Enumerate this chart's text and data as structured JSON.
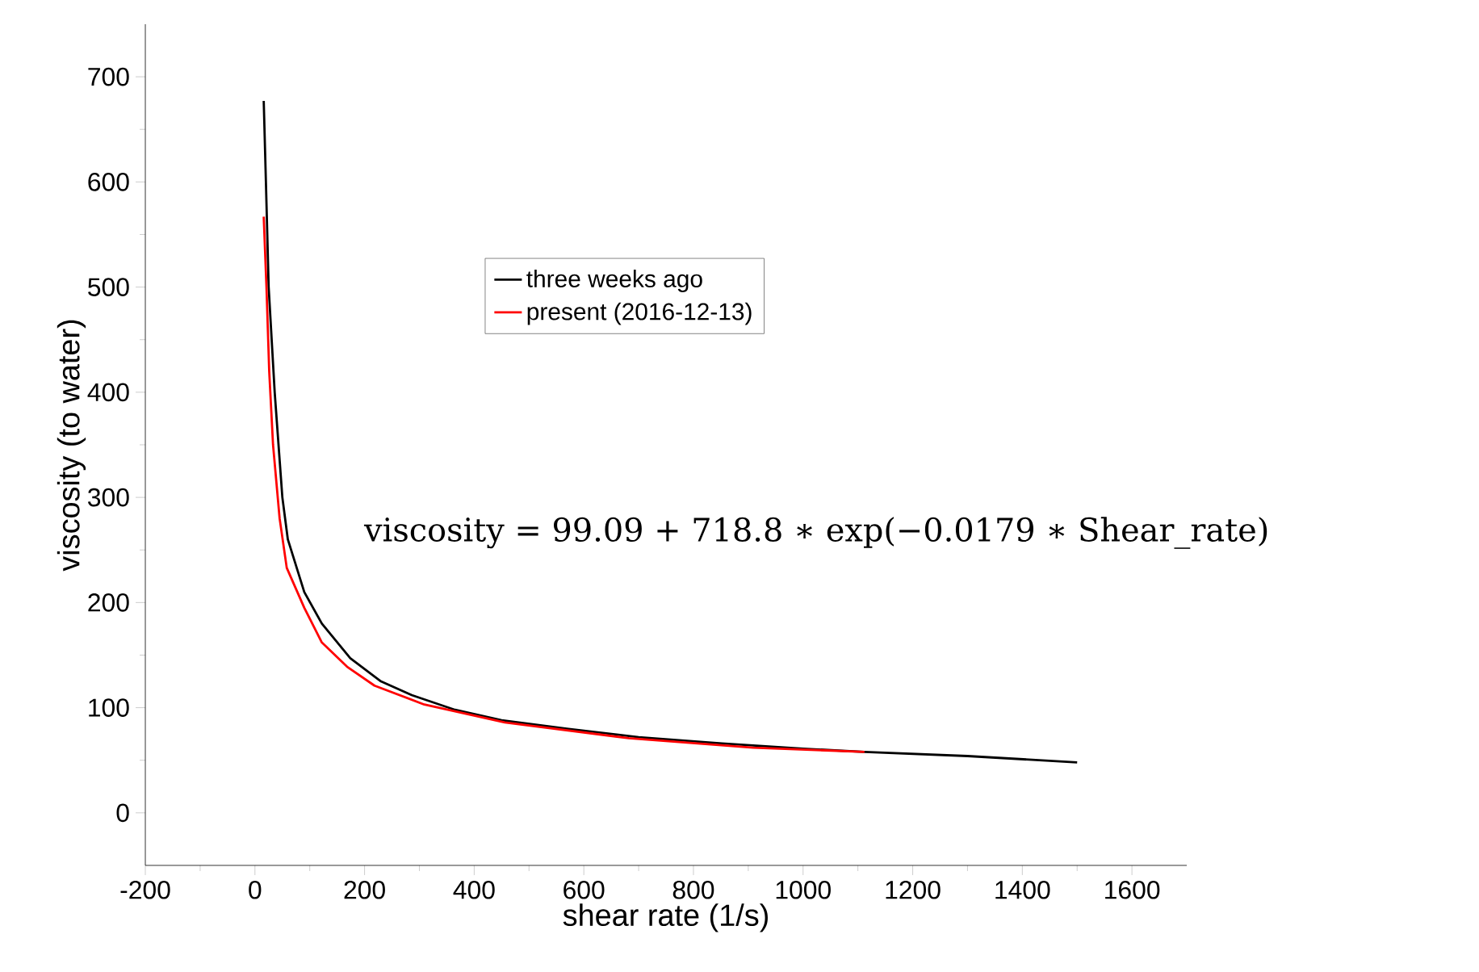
{
  "chart_data": {
    "type": "line",
    "xlabel": "shear rate (1/s)",
    "ylabel": "viscosity (to water)",
    "xlim": [
      -200,
      1700
    ],
    "ylim": [
      -50,
      750
    ],
    "xticks": [
      -200,
      0,
      200,
      400,
      600,
      800,
      1000,
      1200,
      1400,
      1600
    ],
    "yticks": [
      0,
      100,
      200,
      300,
      400,
      500,
      600,
      700
    ],
    "grid": false,
    "legend": "top",
    "marker": "none",
    "line_style": "solid",
    "annotations": [
      "viscosity = 99.09 + 718.8 ∗ exp(−0.0179 ∗ Shear_rate)"
    ],
    "series": [
      {
        "name": "three weeks ago",
        "color": "#000000",
        "x": [
          16,
          20,
          25,
          36,
          50,
          60,
          90,
          122,
          174,
          230,
          286,
          365,
          450,
          569,
          700,
          852,
          1000,
          1112,
          1300,
          1500
        ],
        "values": [
          677,
          600,
          500,
          400,
          300,
          260,
          210,
          180,
          147,
          125,
          112,
          98,
          88,
          80,
          72,
          66,
          61,
          58,
          54,
          48
        ]
      },
      {
        "name": "present (2016-12-13)",
        "color": "#ff0000",
        "x": [
          16,
          21,
          26,
          33,
          45,
          58,
          90,
          122,
          168,
          218,
          309,
          456,
          682,
          909,
          1112
        ],
        "values": [
          567,
          500,
          420,
          350,
          280,
          233,
          195,
          162,
          139,
          121,
          103,
          86,
          71,
          62,
          58
        ]
      }
    ]
  }
}
